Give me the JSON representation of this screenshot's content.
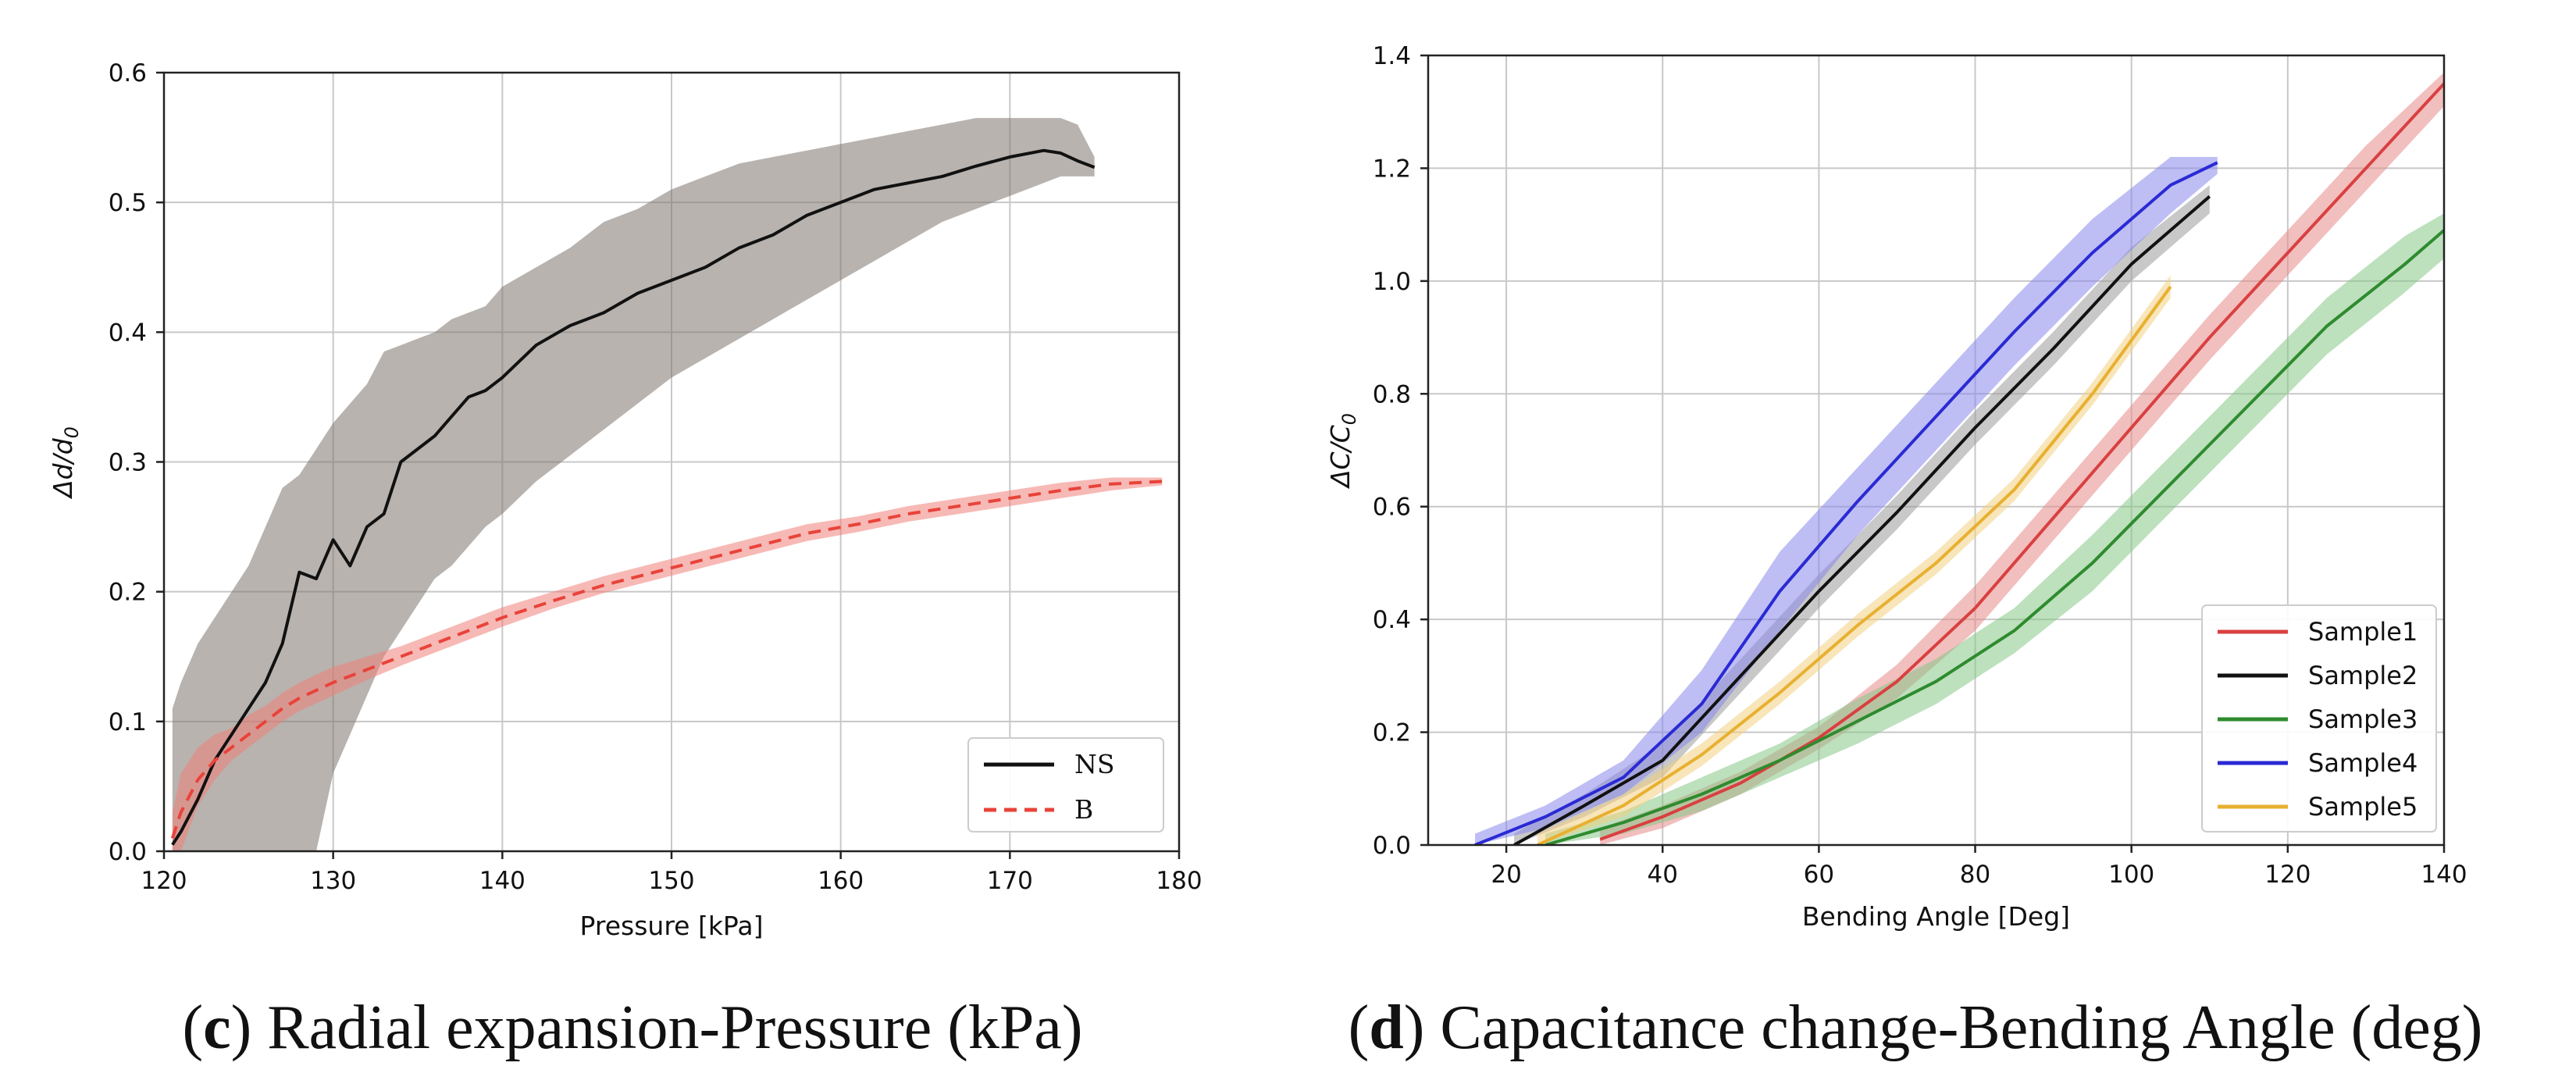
{
  "chart_data": [
    {
      "id": "c",
      "type": "line",
      "xlabel": "Pressure [kPa]",
      "ylabel": "Δd/d0",
      "xlim": [
        120,
        180
      ],
      "ylim": [
        0.0,
        0.6
      ],
      "xticks": [
        120,
        130,
        140,
        150,
        160,
        170,
        180
      ],
      "yticks": [
        0.0,
        0.1,
        0.2,
        0.3,
        0.4,
        0.5,
        0.6
      ],
      "xtick_labels": [
        "120",
        "130",
        "140",
        "150",
        "160",
        "170",
        "180"
      ],
      "ytick_labels": [
        "0.0",
        "0.1",
        "0.2",
        "0.3",
        "0.4",
        "0.5",
        "0.6"
      ],
      "grid": true,
      "legend_position": "lower-right",
      "caption_letter": "c",
      "caption_text": " Radial expansion-Pressure (kPa)",
      "series": [
        {
          "name": "NS",
          "color": "#111111",
          "band_color": "#7d746d",
          "dashed": false,
          "x": [
            120.5,
            121,
            122,
            123,
            124,
            125,
            126,
            127,
            128,
            129,
            130,
            131,
            132,
            133,
            134,
            135,
            136,
            137,
            138,
            139,
            140,
            142,
            144,
            146,
            148,
            150,
            152,
            154,
            156,
            158,
            160,
            162,
            164,
            166,
            168,
            170,
            172,
            173,
            174,
            175
          ],
          "y": [
            0.005,
            0.015,
            0.04,
            0.07,
            0.09,
            0.11,
            0.13,
            0.16,
            0.215,
            0.21,
            0.24,
            0.22,
            0.25,
            0.26,
            0.3,
            0.31,
            0.32,
            0.335,
            0.35,
            0.355,
            0.365,
            0.39,
            0.405,
            0.415,
            0.43,
            0.44,
            0.45,
            0.465,
            0.475,
            0.49,
            0.5,
            0.51,
            0.515,
            0.52,
            0.528,
            0.535,
            0.54,
            0.538,
            0.532,
            0.527
          ],
          "lower": [
            0.0,
            0.0,
            0.0,
            0.0,
            0.0,
            0.0,
            0.0,
            0.0,
            0.0,
            0.0,
            0.06,
            0.09,
            0.12,
            0.15,
            0.17,
            0.19,
            0.21,
            0.22,
            0.235,
            0.25,
            0.26,
            0.285,
            0.305,
            0.325,
            0.345,
            0.365,
            0.38,
            0.395,
            0.41,
            0.425,
            0.44,
            0.455,
            0.47,
            0.485,
            0.495,
            0.505,
            0.515,
            0.52,
            0.52,
            0.52
          ],
          "upper": [
            0.11,
            0.13,
            0.16,
            0.18,
            0.2,
            0.22,
            0.25,
            0.28,
            0.29,
            0.31,
            0.33,
            0.345,
            0.36,
            0.385,
            0.39,
            0.395,
            0.4,
            0.41,
            0.415,
            0.42,
            0.435,
            0.45,
            0.465,
            0.485,
            0.495,
            0.51,
            0.52,
            0.53,
            0.535,
            0.54,
            0.545,
            0.55,
            0.555,
            0.56,
            0.565,
            0.565,
            0.565,
            0.565,
            0.56,
            0.535
          ]
        },
        {
          "name": "B",
          "color": "#e8433a",
          "band_color": "#f08078",
          "dashed": true,
          "x": [
            120.5,
            121,
            122,
            123,
            124,
            125,
            126,
            127,
            128,
            130,
            132,
            134,
            136,
            138,
            140,
            143,
            146,
            149,
            152,
            155,
            158,
            161,
            164,
            167,
            170,
            173,
            176,
            179
          ],
          "y": [
            0.01,
            0.03,
            0.055,
            0.07,
            0.08,
            0.09,
            0.1,
            0.11,
            0.118,
            0.13,
            0.14,
            0.15,
            0.16,
            0.17,
            0.18,
            0.193,
            0.205,
            0.215,
            0.225,
            0.235,
            0.245,
            0.252,
            0.26,
            0.266,
            0.272,
            0.278,
            0.283,
            0.285
          ],
          "lower": [
            0.0,
            0.0,
            0.035,
            0.055,
            0.07,
            0.08,
            0.09,
            0.1,
            0.108,
            0.12,
            0.132,
            0.143,
            0.153,
            0.163,
            0.173,
            0.187,
            0.199,
            0.209,
            0.219,
            0.229,
            0.239,
            0.246,
            0.254,
            0.26,
            0.266,
            0.272,
            0.278,
            0.282
          ],
          "upper": [
            0.03,
            0.06,
            0.08,
            0.09,
            0.095,
            0.105,
            0.112,
            0.122,
            0.13,
            0.142,
            0.15,
            0.158,
            0.168,
            0.178,
            0.188,
            0.2,
            0.212,
            0.222,
            0.232,
            0.242,
            0.252,
            0.258,
            0.266,
            0.272,
            0.278,
            0.284,
            0.288,
            0.288
          ]
        }
      ]
    },
    {
      "id": "d",
      "type": "line",
      "xlabel": "Bending Angle [Deg]",
      "ylabel": "ΔC/C0",
      "xlim": [
        10,
        140
      ],
      "ylim": [
        0.0,
        1.4
      ],
      "xticks": [
        20,
        40,
        60,
        80,
        100,
        120,
        140
      ],
      "yticks": [
        0.0,
        0.2,
        0.4,
        0.6,
        0.8,
        1.0,
        1.2,
        1.4
      ],
      "xtick_labels": [
        "20",
        "40",
        "60",
        "80",
        "100",
        "120",
        "140"
      ],
      "ytick_labels": [
        "0.0",
        "0.2",
        "0.4",
        "0.6",
        "0.8",
        "1.0",
        "1.2",
        "1.4"
      ],
      "grid": true,
      "legend_position": "lower-right",
      "caption_letter": "d",
      "caption_text": " Capacitance change-Bending Angle (deg)",
      "series": [
        {
          "name": "Sample1",
          "color": "#d94040",
          "band_color": "#e58a88",
          "dashed": false,
          "x": [
            32,
            40,
            50,
            60,
            70,
            80,
            90,
            100,
            110,
            120,
            130,
            140
          ],
          "y": [
            0.01,
            0.05,
            0.11,
            0.19,
            0.29,
            0.42,
            0.58,
            0.74,
            0.9,
            1.05,
            1.2,
            1.35
          ],
          "lower": [
            0.0,
            0.03,
            0.09,
            0.17,
            0.26,
            0.38,
            0.54,
            0.7,
            0.86,
            1.01,
            1.16,
            1.31
          ],
          "upper": [
            0.03,
            0.07,
            0.13,
            0.21,
            0.32,
            0.46,
            0.62,
            0.78,
            0.94,
            1.09,
            1.24,
            1.37
          ]
        },
        {
          "name": "Sample2",
          "color": "#111111",
          "band_color": "#9a9a9a",
          "dashed": false,
          "x": [
            21,
            30,
            40,
            50,
            60,
            70,
            80,
            90,
            100,
            110
          ],
          "y": [
            0.0,
            0.07,
            0.15,
            0.3,
            0.45,
            0.59,
            0.74,
            0.88,
            1.03,
            1.15
          ],
          "lower": [
            0.0,
            0.05,
            0.12,
            0.27,
            0.42,
            0.56,
            0.71,
            0.85,
            1.0,
            1.12
          ],
          "upper": [
            0.02,
            0.09,
            0.18,
            0.33,
            0.48,
            0.62,
            0.77,
            0.91,
            1.06,
            1.17
          ]
        },
        {
          "name": "Sample3",
          "color": "#2e8b2e",
          "band_color": "#86c786",
          "dashed": false,
          "x": [
            25,
            35,
            45,
            55,
            65,
            75,
            85,
            95,
            105,
            115,
            125,
            135,
            140
          ],
          "y": [
            0.0,
            0.04,
            0.09,
            0.15,
            0.22,
            0.29,
            0.38,
            0.5,
            0.64,
            0.78,
            0.92,
            1.03,
            1.09
          ],
          "lower": [
            0.0,
            0.02,
            0.06,
            0.12,
            0.18,
            0.25,
            0.34,
            0.45,
            0.59,
            0.73,
            0.87,
            0.98,
            1.04
          ],
          "upper": [
            0.02,
            0.06,
            0.12,
            0.18,
            0.26,
            0.33,
            0.42,
            0.55,
            0.69,
            0.83,
            0.97,
            1.08,
            1.12
          ]
        },
        {
          "name": "Sample4",
          "color": "#2a2ad4",
          "band_color": "#8888ec",
          "dashed": false,
          "x": [
            16,
            25,
            35,
            45,
            55,
            65,
            75,
            85,
            95,
            105,
            111
          ],
          "y": [
            0.0,
            0.05,
            0.12,
            0.25,
            0.45,
            0.61,
            0.76,
            0.91,
            1.05,
            1.17,
            1.21
          ],
          "lower": [
            0.0,
            0.03,
            0.09,
            0.2,
            0.38,
            0.55,
            0.7,
            0.85,
            0.99,
            1.12,
            1.19
          ],
          "upper": [
            0.02,
            0.07,
            0.15,
            0.31,
            0.52,
            0.67,
            0.82,
            0.97,
            1.11,
            1.22,
            1.22
          ]
        },
        {
          "name": "Sample5",
          "color": "#e8b030",
          "band_color": "#f2d080",
          "dashed": false,
          "x": [
            24,
            35,
            45,
            55,
            65,
            75,
            85,
            95,
            105
          ],
          "y": [
            0.0,
            0.07,
            0.16,
            0.27,
            0.39,
            0.5,
            0.63,
            0.8,
            0.99
          ],
          "lower": [
            0.0,
            0.05,
            0.14,
            0.25,
            0.37,
            0.48,
            0.61,
            0.78,
            0.97
          ],
          "upper": [
            0.02,
            0.09,
            0.18,
            0.29,
            0.41,
            0.52,
            0.65,
            0.82,
            1.01
          ]
        }
      ]
    }
  ]
}
